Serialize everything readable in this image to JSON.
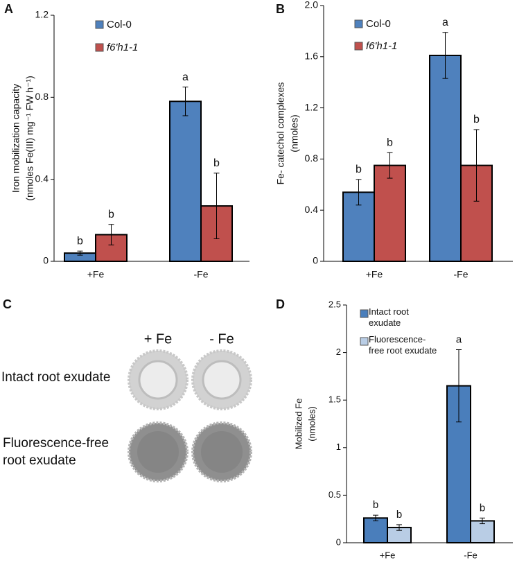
{
  "chart_data": [
    {
      "type": "bar",
      "panel": "A",
      "ylabel": [
        "Iron mobilization capacity",
        "(nmoles Fe(III)  mg⁻¹ FW h⁻¹)"
      ],
      "categories": [
        "+Fe",
        "-Fe"
      ],
      "series": [
        {
          "name": "Col-0",
          "color": "#4f81bd",
          "values": [
            0.04,
            0.78
          ],
          "errors": [
            0.01,
            0.07
          ],
          "significance": [
            "b",
            "a"
          ]
        },
        {
          "name": "f6'h1-1",
          "color": "#c0504d",
          "values": [
            0.13,
            0.27
          ],
          "errors": [
            0.05,
            0.16
          ],
          "significance": [
            "b",
            "b"
          ]
        }
      ],
      "ylim": [
        0,
        1.2
      ],
      "yticks": [
        0,
        0.4,
        0.8,
        1.2
      ]
    },
    {
      "type": "bar",
      "panel": "B",
      "ylabel": [
        "Fe- catechol complexes",
        "(nmoles)"
      ],
      "categories": [
        "+Fe",
        "-Fe"
      ],
      "series": [
        {
          "name": "Col-0",
          "color": "#4f81bd",
          "values": [
            0.54,
            1.61
          ],
          "errors": [
            0.1,
            0.18
          ],
          "significance": [
            "b",
            "a"
          ]
        },
        {
          "name": "f6'h1-1",
          "color": "#c0504d",
          "values": [
            0.75,
            0.75
          ],
          "errors": [
            0.1,
            0.28
          ],
          "significance": [
            "b",
            "b"
          ]
        }
      ],
      "ylim": [
        0,
        2
      ],
      "yticks": [
        0,
        0.4,
        0.8,
        1.2,
        1.6,
        {
          "value": 2,
          "label": "2.0"
        }
      ]
    },
    {
      "type": "bar",
      "panel": "D",
      "ylabel": [
        "Mobilized Fe",
        "(nmoles)"
      ],
      "categories": [
        "+Fe",
        "-Fe"
      ],
      "series": [
        {
          "name": "Intact root exudate",
          "color": "#4a7ebb",
          "values": [
            0.26,
            1.65
          ],
          "errors": [
            0.03,
            0.38
          ],
          "significance": [
            "b",
            "a"
          ]
        },
        {
          "name": "Fluorescence-free root exudate",
          "color": "#b9cde5",
          "values": [
            0.16,
            0.23
          ],
          "errors": [
            0.03,
            0.03
          ],
          "significance": [
            "b",
            "b"
          ]
        }
      ],
      "ylim": [
        0,
        2.5
      ],
      "yticks": [
        0,
        0.5,
        1,
        1.5,
        2,
        2.5
      ]
    }
  ],
  "panel_c": {
    "label": "C",
    "columns": [
      "+ Fe",
      "- Fe"
    ],
    "rows": [
      [
        "Intact root exudate"
      ],
      [
        "Fluorescence-free",
        "root exudate"
      ]
    ]
  }
}
